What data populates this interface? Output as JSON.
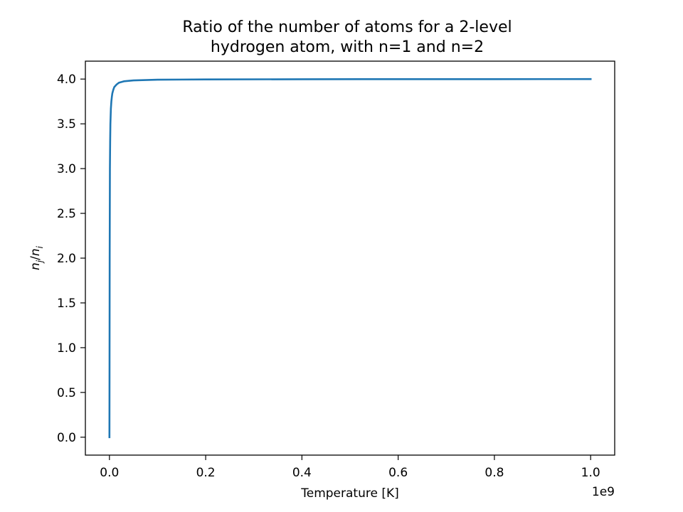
{
  "chart_data": {
    "type": "line",
    "title_lines": [
      "Ratio of the number of atoms for a 2-level",
      "hydrogen atom, with n=1 and n=2"
    ],
    "xlabel": "Temperature [K]",
    "ylabel_parts": {
      "base1": "n",
      "sub1": "j",
      "slash": "/",
      "base2": "n",
      "sub2": "i"
    },
    "x_offset_label": "1e9",
    "xlim": [
      -0.05,
      1.05
    ],
    "ylim": [
      -0.2,
      4.2
    ],
    "xticks": [
      0.0,
      0.2,
      0.4,
      0.6,
      0.8,
      1.0
    ],
    "xtick_labels": [
      "0.0",
      "0.2",
      "0.4",
      "0.6",
      "0.8",
      "1.0"
    ],
    "yticks": [
      0.0,
      0.5,
      1.0,
      1.5,
      2.0,
      2.5,
      3.0,
      3.5,
      4.0
    ],
    "ytick_labels": [
      "0.0",
      "0.5",
      "1.0",
      "1.5",
      "2.0",
      "2.5",
      "3.0",
      "3.5",
      "4.0"
    ],
    "grid": false,
    "series": [
      {
        "color": "#1f77b4",
        "x": [
          0.0,
          0.0005,
          0.001,
          0.0015,
          0.002,
          0.003,
          0.004,
          0.005,
          0.006,
          0.008,
          0.01,
          0.015,
          0.02,
          0.03,
          0.05,
          0.1,
          0.2,
          0.4,
          0.6,
          0.8,
          1.0
        ],
        "y": [
          0.0,
          2.0,
          3.0,
          3.3,
          3.5,
          3.67,
          3.75,
          3.8,
          3.84,
          3.88,
          3.91,
          3.94,
          3.96,
          3.975,
          3.985,
          3.993,
          3.996,
          3.998,
          3.999,
          3.999,
          4.0
        ]
      }
    ]
  }
}
